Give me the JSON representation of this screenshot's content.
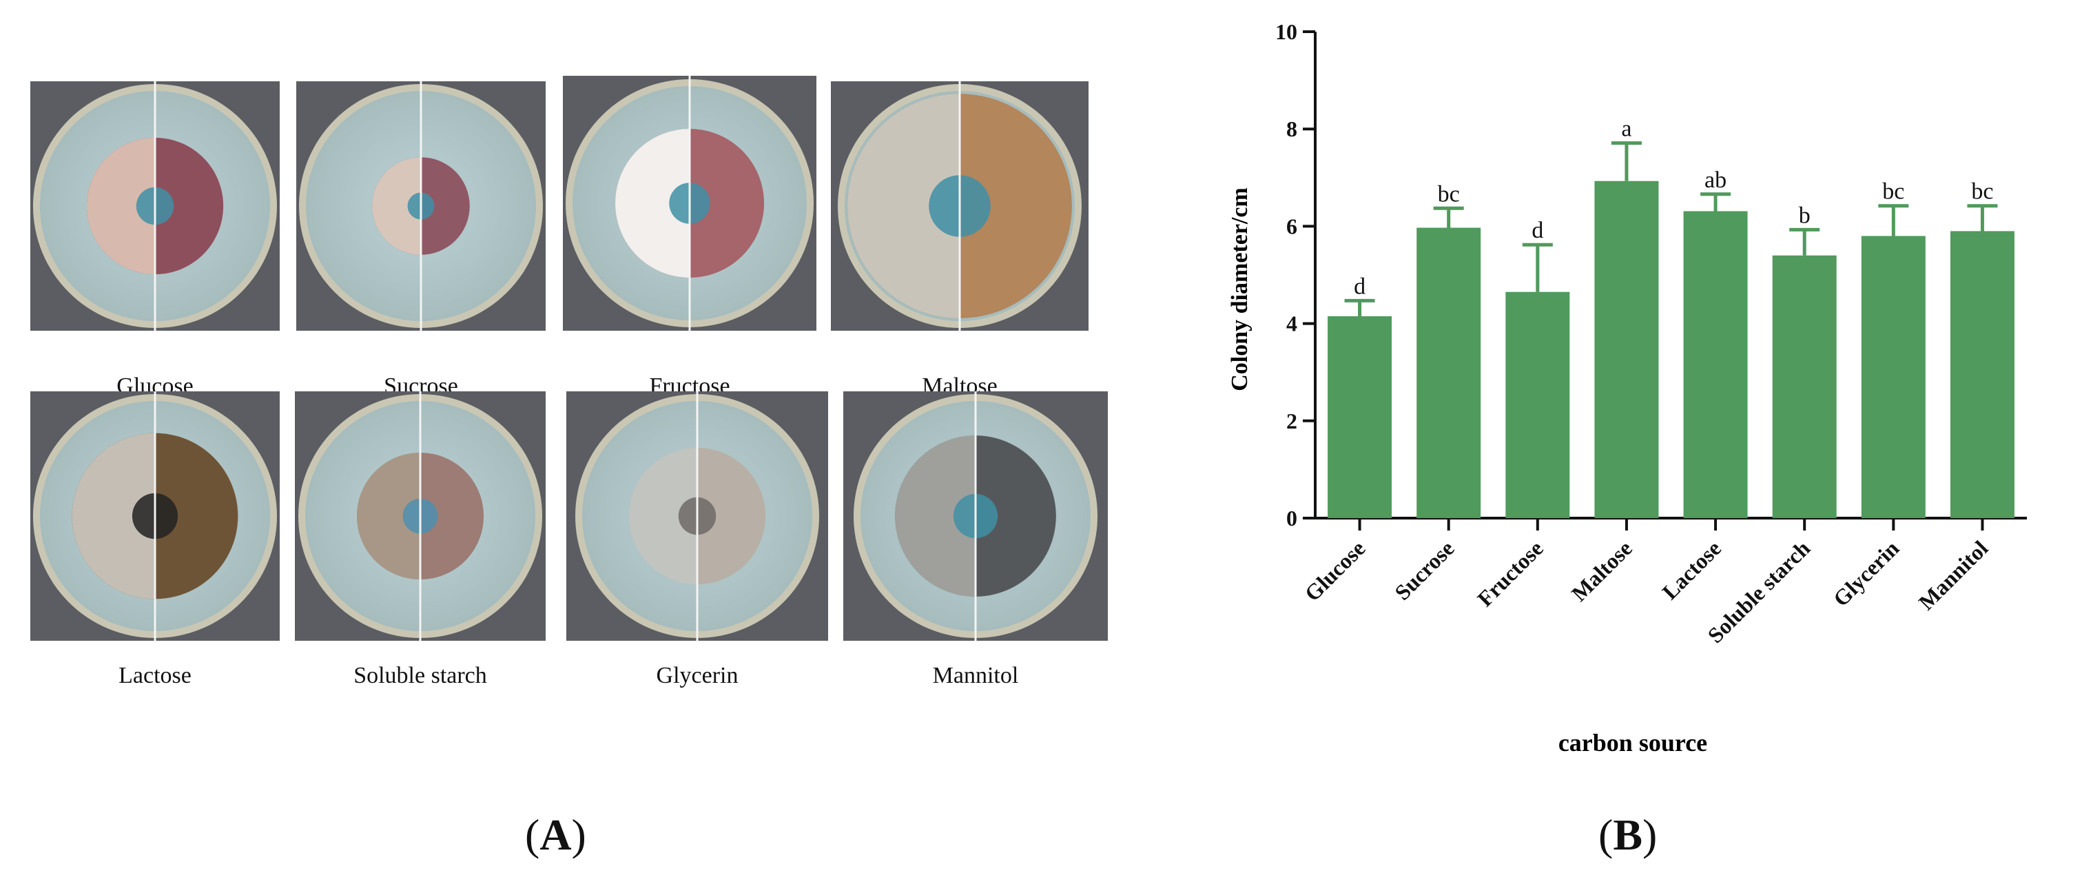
{
  "panel_a": {
    "label": "A",
    "plates": [
      {
        "caption": "Glucose"
      },
      {
        "caption": "Sucrose"
      },
      {
        "caption": "Fructose"
      },
      {
        "caption": "Maltose"
      },
      {
        "caption": "Lactose"
      },
      {
        "caption": "Soluble starch"
      },
      {
        "caption": "Glycerin"
      },
      {
        "caption": "Mannitol"
      }
    ]
  },
  "panel_b": {
    "label": "B"
  },
  "chart_data": {
    "type": "bar",
    "title": "",
    "xlabel": "carbon source",
    "ylabel": "Colony diameter/cm",
    "ylim": [
      0,
      10
    ],
    "yticks": [
      0,
      2,
      4,
      6,
      8,
      10
    ],
    "grid": false,
    "bar_color": "#4f9a5c",
    "categories": [
      "Glucose",
      "Sucrose",
      "Fructose",
      "Maltose",
      "Lactose",
      "Soluble starch",
      "Glycerin",
      "Mannitol"
    ],
    "values": [
      4.15,
      5.97,
      4.65,
      6.93,
      6.31,
      5.4,
      5.8,
      5.9
    ],
    "errors": [
      0.32,
      0.4,
      0.97,
      0.78,
      0.35,
      0.53,
      0.62,
      0.52
    ],
    "significance_labels": [
      "d",
      "bc",
      "d",
      "a",
      "ab",
      "b",
      "bc",
      "bc"
    ]
  }
}
